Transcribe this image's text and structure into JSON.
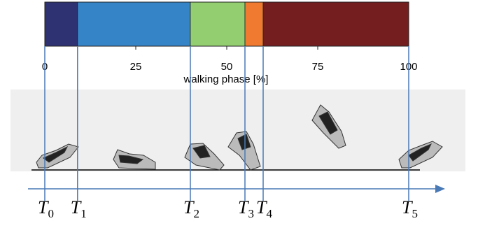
{
  "chart_data": {
    "type": "stacked-bar",
    "xlabel": "walking phase [%]",
    "xlim": [
      0,
      100
    ],
    "xticks": [
      0,
      25,
      50,
      75,
      100
    ],
    "series": [
      {
        "color": "#2e3272",
        "values": [
          9
        ]
      },
      {
        "color": "#3584c8",
        "values": [
          31
        ]
      },
      {
        "color": "#93cf70",
        "values": [
          15
        ]
      },
      {
        "color": "#f07a30",
        "values": [
          5
        ]
      },
      {
        "color": "#741e20",
        "values": [
          40
        ]
      }
    ],
    "events": [
      {
        "label": "T",
        "sub": "0"
      },
      {
        "label": "T",
        "sub": "1"
      },
      {
        "label": "T",
        "sub": "2"
      },
      {
        "label": "T",
        "sub": "3"
      },
      {
        "label": "T",
        "sub": "4"
      },
      {
        "label": "T",
        "sub": "5"
      }
    ],
    "event_color": "#4a7ab5"
  }
}
